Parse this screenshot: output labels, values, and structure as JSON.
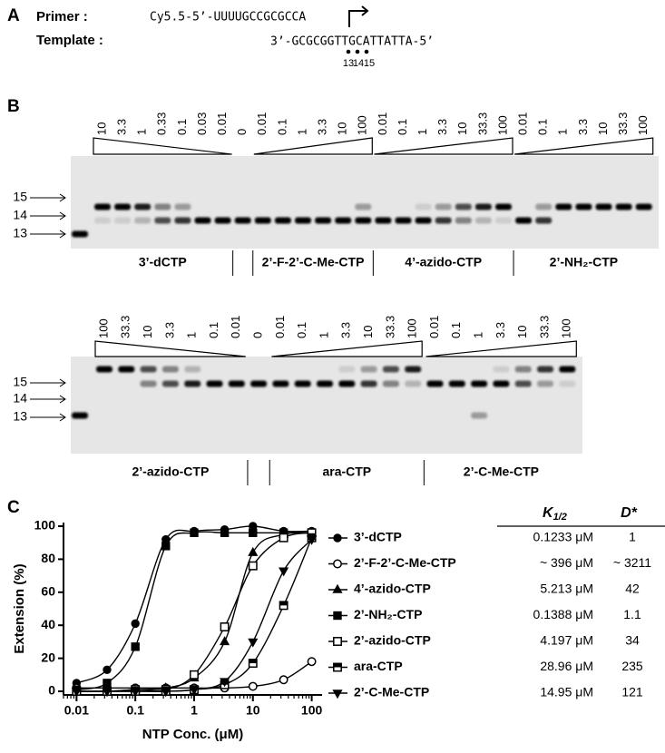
{
  "panel_a": {
    "label": "A",
    "primer": {
      "label": "Primer :",
      "sequence": "Cy5.5-5’-UUUUGCCGCGCCA"
    },
    "template": {
      "label": "Template :",
      "sequence": "3’-GCGCGGTTGCATTATTA-5’"
    },
    "positions": [
      "13",
      "14",
      "15"
    ]
  },
  "panel_b": {
    "label": "B",
    "gels": [
      {
        "markers": [
          "15",
          "14",
          "13"
        ],
        "groups": [
          {
            "name": "3’-dCTP",
            "lanes": [
              "10",
              "3.3",
              "1",
              "0.33",
              "0.1",
              "0.03",
              "0.01"
            ]
          },
          {
            "lanes": [
              "0"
            ]
          },
          {
            "name": "2’-F-2’-C-Me-CTP",
            "lanes": [
              "0.01",
              "0.1",
              "1",
              "3.3",
              "10",
              "100"
            ]
          },
          {
            "name": "4’-azido-CTP",
            "lanes": [
              "0.01",
              "0.1",
              "1",
              "3.3",
              "10",
              "33.3",
              "100"
            ]
          },
          {
            "name": "2’-NH₂-CTP",
            "lanes": [
              "0.01",
              "0.1",
              "1",
              "3.3",
              "10",
              "33.3",
              "100"
            ]
          }
        ]
      },
      {
        "markers": [
          "15",
          "14",
          "13"
        ],
        "groups": [
          {
            "name": "2’-azido-CTP",
            "lanes": [
              "100",
              "33.3",
              "10",
              "3.3",
              "1",
              "0.1",
              "0.01"
            ]
          },
          {
            "lanes": [
              "0"
            ]
          },
          {
            "name": "ara-CTP",
            "lanes": [
              "0.01",
              "0.1",
              "1",
              "3.3",
              "10",
              "33.3",
              "100"
            ]
          },
          {
            "name": "2’-C-Me-CTP",
            "lanes": [
              "0.01",
              "0.1",
              "1",
              "3.3",
              "10",
              "33.3",
              "100"
            ]
          }
        ]
      }
    ]
  },
  "panel_c_label": "C",
  "chart_data": {
    "type": "line",
    "xscale": "log",
    "xlabel": "NTP Conc. (μM)",
    "ylabel": "Extension (%)",
    "x": [
      0.01,
      0.033,
      0.1,
      0.33,
      1,
      3.3,
      10,
      33.3,
      100
    ],
    "xlim": [
      0.006,
      150
    ],
    "xticks": [
      0.01,
      0.1,
      1,
      10,
      100
    ],
    "ylim": [
      0,
      100
    ],
    "yticks": [
      0,
      20,
      40,
      60,
      80,
      100
    ],
    "series": [
      {
        "name": "3’-dCTP",
        "color": "#000000",
        "marker": "circle",
        "values": [
          5,
          13,
          41,
          92,
          97,
          98,
          100,
          97,
          97
        ]
      },
      {
        "name": "2’-F-2’-C-Me-CTP",
        "color": "#000000",
        "marker": "circle-open",
        "values": [
          2,
          2,
          2,
          2,
          2,
          2,
          3,
          7,
          18
        ]
      },
      {
        "name": "4’-azido-CTP",
        "color": "#000000",
        "marker": "triangle",
        "values": [
          0,
          0,
          1,
          2,
          8,
          30,
          84,
          95,
          96
        ]
      },
      {
        "name": "2’-NH₂-CTP",
        "color": "#000000",
        "marker": "square",
        "values": [
          1,
          5,
          27,
          88,
          96,
          96,
          96,
          96,
          96
        ]
      },
      {
        "name": "2’-azido-CTP",
        "color": "#000000",
        "marker": "square-open",
        "values": [
          0,
          0,
          1,
          1,
          10,
          39,
          76,
          93,
          96
        ]
      },
      {
        "name": "ara-CTP",
        "color": "#000000",
        "marker": "square-half",
        "values": [
          0,
          0,
          0,
          0,
          1,
          4,
          17,
          52,
          93
        ]
      },
      {
        "name": "2’-C-Me-CTP",
        "color": "#000000",
        "marker": "triangle-down",
        "values": [
          0,
          0,
          0,
          0,
          1,
          6,
          30,
          73,
          92
        ]
      }
    ]
  },
  "table": {
    "header": {
      "k": {
        "symbol": "K",
        "subscript": "1/2"
      },
      "d": "D*"
    },
    "rows": [
      [
        "0.1233 μM",
        "1"
      ],
      [
        "~ 396 μM",
        "~ 3211"
      ],
      [
        "5.213 μM",
        "42"
      ],
      [
        "0.1388 μM",
        "1.1"
      ],
      [
        "4.197 μM",
        "34"
      ],
      [
        "28.96 μM",
        "235"
      ],
      [
        "14.95 μM",
        "121"
      ]
    ]
  }
}
